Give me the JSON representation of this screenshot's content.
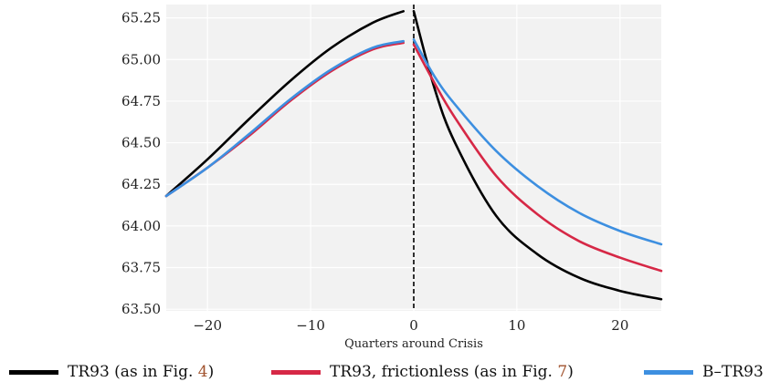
{
  "chart_data": {
    "type": "line",
    "title": "",
    "xlabel": "Quarters around Crisis",
    "ylabel": "",
    "xlim": [
      -24,
      24
    ],
    "ylim": [
      63.49,
      65.33
    ],
    "xticks": [
      -20,
      -10,
      0,
      10,
      20
    ],
    "xtick_labels": [
      "−20",
      "−10",
      "0",
      "10",
      "20"
    ],
    "yticks": [
      63.5,
      63.75,
      64.0,
      64.25,
      64.5,
      64.75,
      65.0,
      65.25
    ],
    "ytick_labels": [
      "63.50",
      "63.75",
      "64.00",
      "64.25",
      "64.50",
      "64.75",
      "65.00",
      "65.25"
    ],
    "grid": true,
    "vline": {
      "x": 0,
      "style": "dashed",
      "color": "#000000"
    },
    "legend_position": "bottom",
    "series": [
      {
        "name": "TR93 (as in Fig. 4)",
        "color": "#000000",
        "x": [
          -24,
          -20,
          -16,
          -12,
          -8,
          -4,
          -1,
          0,
          2,
          4,
          8,
          12,
          16,
          20,
          24
        ],
        "y": [
          64.18,
          64.4,
          64.64,
          64.87,
          65.07,
          65.22,
          65.29,
          65.29,
          64.83,
          64.5,
          64.06,
          63.83,
          63.69,
          63.61,
          63.56
        ]
      },
      {
        "name": "TR93, frictionless (as in Fig. 7)",
        "color": "#d62846",
        "x": [
          -24,
          -20,
          -16,
          -12,
          -8,
          -4,
          -1,
          0,
          2,
          4,
          8,
          12,
          16,
          20,
          24
        ],
        "y": [
          64.18,
          64.35,
          64.54,
          64.75,
          64.93,
          65.06,
          65.1,
          65.09,
          64.86,
          64.65,
          64.3,
          64.07,
          63.91,
          63.81,
          63.73
        ]
      },
      {
        "name": "B–TR93",
        "color": "#3d8fe0",
        "x": [
          -24,
          -20,
          -16,
          -12,
          -8,
          -4,
          -1,
          0,
          2,
          4,
          8,
          12,
          16,
          20,
          24
        ],
        "y": [
          64.18,
          64.35,
          64.55,
          64.76,
          64.94,
          65.07,
          65.11,
          65.12,
          64.9,
          64.73,
          64.45,
          64.24,
          64.08,
          63.97,
          63.89
        ]
      }
    ]
  },
  "legend": [
    {
      "text": "TR93 (as in Fig. ",
      "ref": "4",
      "tail": ")",
      "color": "#000000"
    },
    {
      "text": "TR93, frictionless (as in Fig. ",
      "ref": "7",
      "tail": ")",
      "color": "#d62846"
    },
    {
      "text": "B–TR93",
      "ref": "",
      "tail": "",
      "color": "#3d8fe0"
    }
  ]
}
